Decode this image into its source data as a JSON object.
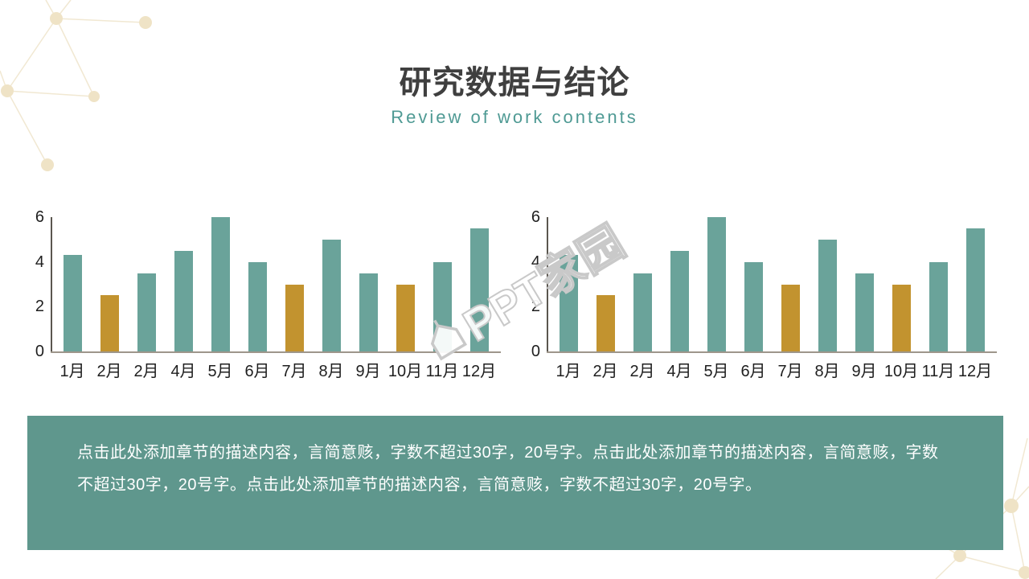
{
  "header": {
    "title": "研究数据与结论",
    "subtitle": "Review of work contents"
  },
  "chart_data": [
    {
      "type": "bar",
      "title": "",
      "xlabel": "",
      "ylabel": "",
      "categories": [
        "1月",
        "2月",
        "2月",
        "4月",
        "5月",
        "6月",
        "7月",
        "8月",
        "9月",
        "10月",
        "11月",
        "12月"
      ],
      "values": [
        4.3,
        2.5,
        3.5,
        4.5,
        6,
        4,
        3,
        5,
        3.5,
        3,
        4,
        5.5
      ],
      "highlight_indices": [
        1,
        6,
        9
      ],
      "bar_color": "#6aa39a",
      "highlight_color": "#c2932f",
      "yticks": [
        0,
        2,
        4,
        6
      ],
      "ylim": [
        0,
        6
      ],
      "grid": false,
      "legend": false
    },
    {
      "type": "bar",
      "title": "",
      "xlabel": "",
      "ylabel": "",
      "categories": [
        "1月",
        "2月",
        "2月",
        "4月",
        "5月",
        "6月",
        "7月",
        "8月",
        "9月",
        "10月",
        "11月",
        "12月"
      ],
      "values": [
        4.3,
        2.5,
        3.5,
        4.5,
        6,
        4,
        3,
        5,
        3.5,
        3,
        4,
        5.5
      ],
      "highlight_indices": [
        1,
        6,
        9
      ],
      "bar_color": "#6aa39a",
      "highlight_color": "#c2932f",
      "yticks": [
        0,
        2,
        4,
        6
      ],
      "ylim": [
        0,
        6
      ],
      "grid": false,
      "legend": false
    }
  ],
  "watermark": {
    "text": "PPT家园"
  },
  "description": {
    "text": "点击此处添加章节的描述内容，言简意赅，字数不超过30字，20号字。点击此处添加章节的描述内容，言简意赅，字数不超过30字，20号字。点击此处添加章节的描述内容，言简意赅，字数不超过30字，20号字。"
  },
  "colors": {
    "title": "#3f3f3f",
    "subtitle_teal": "#4f9a94",
    "bar_teal": "#6aa39a",
    "bar_gold": "#c2932f",
    "box_teal": "#5f978d",
    "axis_dark": "#5b564f",
    "axis_light": "#9e968b",
    "tick_text": "#1f1f1f",
    "watermark_outline": "#c9c9c9",
    "decor_beige": "#efe3c6"
  }
}
